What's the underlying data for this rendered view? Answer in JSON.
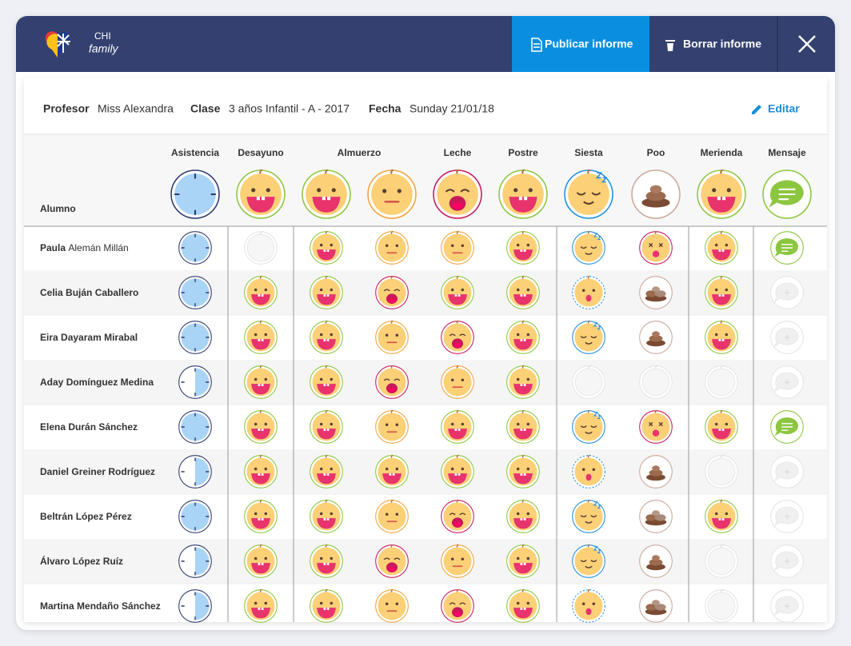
{
  "header": {
    "logo_top": "CHI",
    "logo_bottom": "family",
    "publish": "Publicar informe",
    "delete": "Borrar informe"
  },
  "info": {
    "teacher_label": "Profesor",
    "teacher": "Miss Alexandra",
    "class_label": "Clase",
    "class": "3 años Infantil - A - 2017",
    "date_label": "Fecha",
    "date": "Sunday 21/01/18",
    "edit": "Editar"
  },
  "table": {
    "student_header": "Alumno",
    "columns": [
      "Asistencia",
      "Desayuno",
      "Almuerzo",
      "Leche",
      "Postre",
      "Siesta",
      "Poo",
      "Merienda",
      "Mensaje"
    ],
    "rows": [
      {
        "name": "Paula",
        "surname": "Alemán Millán"
      },
      {
        "name": "Celia",
        "surname": "Buján Caballero"
      },
      {
        "name": "Eira",
        "surname": "Dayaram Mirabal"
      },
      {
        "name": "Aday",
        "surname": "Domínguez Medina"
      },
      {
        "name": "Elena",
        "surname": "Durán Sánchez"
      },
      {
        "name": "Daniel",
        "surname": "Greiner Rodríguez"
      },
      {
        "name": "Beltrán",
        "surname": "López Pérez"
      },
      {
        "name": "Álvaro",
        "surname": "López Ruíz"
      },
      {
        "name": "Martina",
        "surname": "Mendaño Sánchez"
      }
    ]
  }
}
